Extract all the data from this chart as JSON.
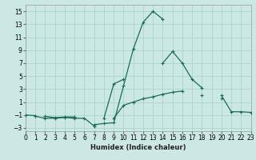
{
  "xlabel": "Humidex (Indice chaleur)",
  "background_color": "#cce8e5",
  "grid_color": "#aad4d0",
  "line_color": "#1a6b5a",
  "xlim": [
    0,
    23
  ],
  "ylim": [
    -3.5,
    16
  ],
  "xticks": [
    0,
    1,
    2,
    3,
    4,
    5,
    6,
    7,
    8,
    9,
    10,
    11,
    12,
    13,
    14,
    15,
    16,
    17,
    18,
    19,
    20,
    21,
    22,
    23
  ],
  "yticks": [
    -3,
    -1,
    1,
    3,
    5,
    7,
    9,
    11,
    13,
    15
  ],
  "series": [
    [
      null,
      null,
      -1.2,
      -1.4,
      -1.3,
      -1.3,
      null,
      -2.5,
      -2.3,
      -2.2,
      3.5,
      9.2,
      13.3,
      15.0,
      13.8,
      null,
      null,
      null,
      null,
      null,
      null,
      null,
      null,
      null
    ],
    [
      null,
      -1.2,
      -1.5,
      -1.5,
      -1.4,
      -1.5,
      -1.5,
      -2.7,
      null,
      null,
      null,
      null,
      null,
      null,
      null,
      null,
      null,
      null,
      null,
      null,
      null,
      null,
      null,
      null
    ],
    [
      -1.0,
      -1.1,
      null,
      null,
      null,
      null,
      null,
      null,
      null,
      -1.5,
      0.5,
      1.0,
      1.5,
      1.8,
      2.2,
      2.5,
      2.7,
      null,
      2.0,
      null,
      2.0,
      -0.5,
      -0.5,
      -0.6
    ],
    [
      -1.0,
      null,
      null,
      null,
      null,
      null,
      null,
      null,
      -1.5,
      3.8,
      4.5,
      null,
      null,
      null,
      7.0,
      8.8,
      7.0,
      4.5,
      3.2,
      null,
      1.5,
      null,
      null,
      null
    ]
  ]
}
